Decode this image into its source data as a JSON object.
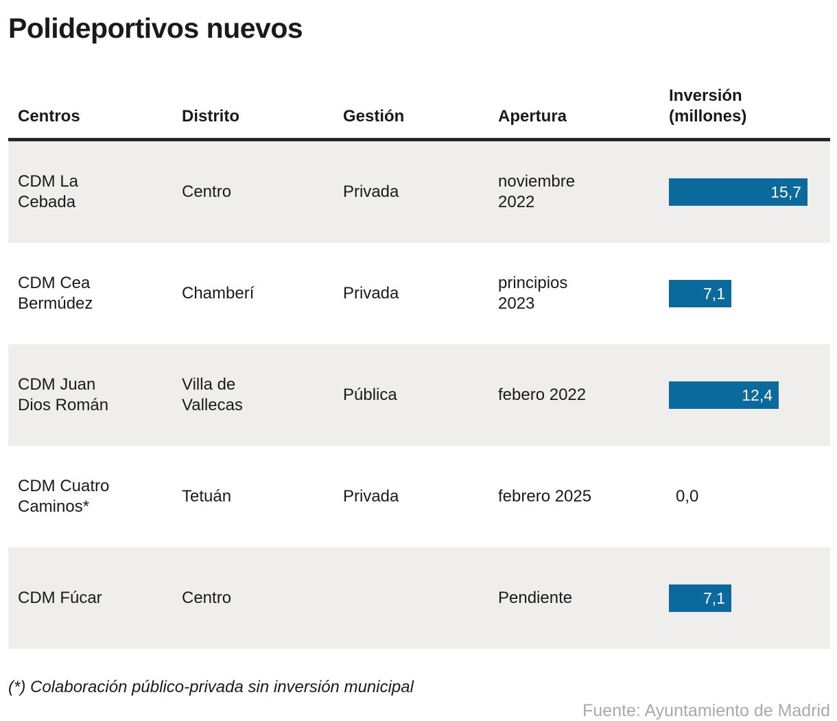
{
  "title": "Polideportivos nuevos",
  "colors": {
    "bar": "#0c699c",
    "stripe": "#efeeec",
    "text": "#1a1a1a",
    "rule": "#262626",
    "source": "#a9a9a9"
  },
  "table": {
    "columns": [
      "Centros",
      "Distrito",
      "Gestión",
      "Apertura",
      "Inversión\n(millones)"
    ],
    "rows": [
      {
        "centro": "CDM La\nCebada",
        "distrito": "Centro",
        "gestion": "Privada",
        "apertura": "noviembre\n2022",
        "inversion_label": "15,7",
        "inversion_value": 15.7
      },
      {
        "centro": "CDM Cea\nBermúdez",
        "distrito": "Chamberí",
        "gestion": "Privada",
        "apertura": "principios\n2023",
        "inversion_label": "7,1",
        "inversion_value": 7.1
      },
      {
        "centro": "CDM Juan\nDios Román",
        "distrito": "Villa de\nVallecas",
        "gestion": "Pública",
        "apertura": "febero 2022",
        "inversion_label": "12,4",
        "inversion_value": 12.4
      },
      {
        "centro": "CDM Cuatro\nCaminos*",
        "distrito": "Tetuán",
        "gestion": "Privada",
        "apertura": "febrero 2025",
        "inversion_label": "0,0",
        "inversion_value": 0
      },
      {
        "centro": "CDM Fúcar",
        "distrito": "Centro",
        "gestion": "",
        "apertura": "Pendiente",
        "inversion_label": "7,1",
        "inversion_value": 7.1
      }
    ]
  },
  "footnote": "(*) Colaboración público-privada sin inversión municipal",
  "source": "Fuente: Ayuntamiento de Madrid",
  "chart_data": {
    "type": "table",
    "title": "Polideportivos nuevos",
    "columns": [
      "Centros",
      "Distrito",
      "Gestión",
      "Apertura",
      "Inversión (millones)"
    ],
    "rows": [
      [
        "CDM La Cebada",
        "Centro",
        "Privada",
        "noviembre 2022",
        15.7
      ],
      [
        "CDM Cea Bermúdez",
        "Chamberí",
        "Privada",
        "principios 2023",
        7.1
      ],
      [
        "CDM Juan Dios Román",
        "Villa de Vallecas",
        "Pública",
        "febero 2022",
        12.4
      ],
      [
        "CDM Cuatro Caminos*",
        "Tetuán",
        "Privada",
        "febrero 2025",
        0.0
      ],
      [
        "CDM Fúcar",
        "Centro",
        "",
        "Pendiente",
        7.1
      ]
    ],
    "embedded_bar_chart": {
      "type": "bar",
      "orientation": "horizontal",
      "series_name": "Inversión (millones)",
      "categories": [
        "CDM La Cebada",
        "CDM Cea Bermúdez",
        "CDM Juan Dios Román",
        "CDM Cuatro Caminos*",
        "CDM Fúcar"
      ],
      "values": [
        15.7,
        7.1,
        12.4,
        0.0,
        7.1
      ],
      "value_labels": [
        "15,7",
        "7,1",
        "12,4",
        "0,0",
        "7,1"
      ],
      "xlim": [
        0,
        15.7
      ],
      "bar_color": "#0c699c",
      "label_position": "inside-end"
    },
    "footnote": "(*) Colaboración público-privada sin inversión municipal",
    "source": "Fuente: Ayuntamiento de Madrid",
    "row_striping": "odd rows shaded"
  }
}
